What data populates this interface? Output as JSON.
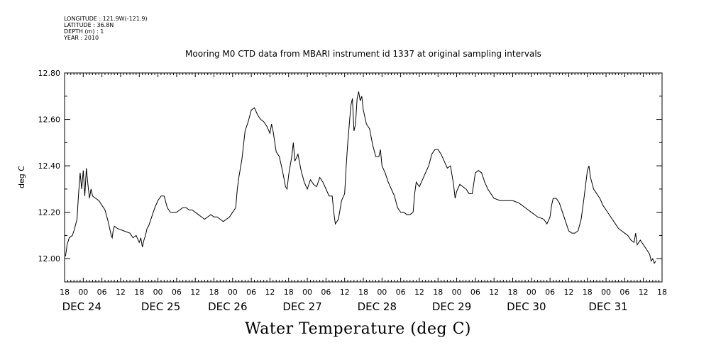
{
  "header": {
    "longitude": "LONGITUDE : 121.9W(-121.9)",
    "latitude": "LATITUDE : 36.8N",
    "depth": "DEPTH (m) : 1",
    "year": "YEAR : 2010"
  },
  "chart_data": {
    "type": "line",
    "title": "Mooring M0 CTD data from MBARI instrument id 1337 at original sampling intervals",
    "xlabel": "Water Temperature (deg C)",
    "ylabel": "deg C",
    "ylim": [
      11.9,
      12.8
    ],
    "xlim_hours_from_dec24_00": [
      -6,
      186
    ],
    "y_ticks": [
      "12.00",
      "12.20",
      "12.40",
      "12.60",
      "12.80"
    ],
    "x_hour_ticks": [
      "18",
      "00",
      "06",
      "12",
      "18",
      "00",
      "06",
      "12",
      "18",
      "00",
      "06",
      "12",
      "18",
      "00",
      "06",
      "12",
      "18",
      "00",
      "06",
      "12",
      "18",
      "00",
      "06",
      "12",
      "18",
      "00",
      "06",
      "12",
      "18",
      "00",
      "06",
      "12",
      "18"
    ],
    "day_labels": [
      "DEC 24",
      "DEC 25",
      "DEC 26",
      "DEC 27",
      "DEC 28",
      "DEC 29",
      "DEC 30",
      "DEC 31"
    ],
    "grid": false,
    "series": [
      {
        "line_color": "#000000",
        "points": [
          [
            -5.7,
            12.01
          ],
          [
            -5.2,
            12.06
          ],
          [
            -4.5,
            12.09
          ],
          [
            -3.5,
            12.1
          ],
          [
            -3,
            12.12
          ],
          [
            -2,
            12.17
          ],
          [
            -1.5,
            12.28
          ],
          [
            -1,
            12.37
          ],
          [
            -0.5,
            12.3
          ],
          [
            0,
            12.38
          ],
          [
            0.5,
            12.27
          ],
          [
            1,
            12.39
          ],
          [
            1.5,
            12.32
          ],
          [
            2,
            12.26
          ],
          [
            2.5,
            12.3
          ],
          [
            3,
            12.27
          ],
          [
            4,
            12.26
          ],
          [
            5,
            12.25
          ],
          [
            6,
            12.23
          ],
          [
            7,
            12.21
          ],
          [
            8,
            12.16
          ],
          [
            9,
            12.1
          ],
          [
            9.3,
            12.09
          ],
          [
            9.6,
            12.12
          ],
          [
            10,
            12.14
          ],
          [
            11,
            12.13
          ],
          [
            13,
            12.12
          ],
          [
            15,
            12.11
          ],
          [
            16,
            12.09
          ],
          [
            17,
            12.1
          ],
          [
            18,
            12.07
          ],
          [
            18.5,
            12.09
          ],
          [
            19,
            12.05
          ],
          [
            19.5,
            12.08
          ],
          [
            20,
            12.1
          ],
          [
            20.5,
            12.13
          ],
          [
            21,
            12.14
          ],
          [
            22,
            12.18
          ],
          [
            23,
            12.22
          ],
          [
            24,
            12.25
          ],
          [
            25,
            12.27
          ],
          [
            26,
            12.27
          ],
          [
            27,
            12.22
          ],
          [
            28,
            12.2
          ],
          [
            29,
            12.2
          ],
          [
            30,
            12.2
          ],
          [
            31,
            12.21
          ],
          [
            32,
            12.22
          ],
          [
            33,
            12.22
          ],
          [
            34,
            12.21
          ],
          [
            35,
            12.21
          ],
          [
            36,
            12.2
          ],
          [
            37,
            12.19
          ],
          [
            38,
            12.18
          ],
          [
            39,
            12.17
          ],
          [
            40,
            12.18
          ],
          [
            41,
            12.19
          ],
          [
            42,
            12.18
          ],
          [
            43,
            12.18
          ],
          [
            44,
            12.17
          ],
          [
            45,
            12.16
          ],
          [
            46,
            12.17
          ],
          [
            47,
            12.18
          ],
          [
            48,
            12.2
          ],
          [
            49,
            12.22
          ],
          [
            49.5,
            12.3
          ],
          [
            50,
            12.35
          ],
          [
            51,
            12.43
          ],
          [
            52,
            12.55
          ],
          [
            53,
            12.59
          ],
          [
            54,
            12.64
          ],
          [
            55,
            12.65
          ],
          [
            56,
            12.62
          ],
          [
            57,
            12.6
          ],
          [
            58,
            12.59
          ],
          [
            59,
            12.57
          ],
          [
            60,
            12.54
          ],
          [
            60.5,
            12.58
          ],
          [
            61,
            12.55
          ],
          [
            62,
            12.46
          ],
          [
            63,
            12.44
          ],
          [
            64,
            12.38
          ],
          [
            65,
            12.31
          ],
          [
            65.5,
            12.3
          ],
          [
            66,
            12.36
          ],
          [
            67,
            12.44
          ],
          [
            67.5,
            12.5
          ],
          [
            68,
            12.42
          ],
          [
            69,
            12.45
          ],
          [
            70,
            12.38
          ],
          [
            71,
            12.33
          ],
          [
            72,
            12.3
          ],
          [
            73,
            12.34
          ],
          [
            74,
            12.32
          ],
          [
            75,
            12.31
          ],
          [
            76,
            12.35
          ],
          [
            77,
            12.33
          ],
          [
            78,
            12.3
          ],
          [
            79,
            12.27
          ],
          [
            80,
            12.27
          ],
          [
            80.5,
            12.2
          ],
          [
            81,
            12.15
          ],
          [
            82,
            12.17
          ],
          [
            83,
            12.25
          ],
          [
            84,
            12.28
          ],
          [
            84.5,
            12.4
          ],
          [
            85,
            12.5
          ],
          [
            86,
            12.66
          ],
          [
            86.5,
            12.69
          ],
          [
            87,
            12.55
          ],
          [
            87.5,
            12.58
          ],
          [
            88,
            12.69
          ],
          [
            88.5,
            12.72
          ],
          [
            89,
            12.68
          ],
          [
            89.5,
            12.7
          ],
          [
            90,
            12.64
          ],
          [
            91,
            12.58
          ],
          [
            92,
            12.56
          ],
          [
            93,
            12.49
          ],
          [
            94,
            12.44
          ],
          [
            95,
            12.44
          ],
          [
            95.5,
            12.47
          ],
          [
            96,
            12.4
          ],
          [
            97,
            12.37
          ],
          [
            98,
            12.33
          ],
          [
            99,
            12.3
          ],
          [
            100,
            12.27
          ],
          [
            101,
            12.22
          ],
          [
            102,
            12.2
          ],
          [
            103,
            12.2
          ],
          [
            104,
            12.19
          ],
          [
            105,
            12.19
          ],
          [
            106,
            12.2
          ],
          [
            106.5,
            12.28
          ],
          [
            107,
            12.33
          ],
          [
            108,
            12.31
          ],
          [
            109,
            12.34
          ],
          [
            110,
            12.37
          ],
          [
            111,
            12.4
          ],
          [
            112,
            12.45
          ],
          [
            113,
            12.47
          ],
          [
            114,
            12.47
          ],
          [
            115,
            12.45
          ],
          [
            116,
            12.42
          ],
          [
            117,
            12.39
          ],
          [
            118,
            12.4
          ],
          [
            119,
            12.32
          ],
          [
            119.5,
            12.26
          ],
          [
            120,
            12.29
          ],
          [
            121,
            12.32
          ],
          [
            122,
            12.31
          ],
          [
            123,
            12.3
          ],
          [
            124,
            12.28
          ],
          [
            125,
            12.28
          ],
          [
            126,
            12.37
          ],
          [
            127,
            12.38
          ],
          [
            128,
            12.37
          ],
          [
            129,
            12.33
          ],
          [
            130,
            12.3
          ],
          [
            131,
            12.28
          ],
          [
            132,
            12.26
          ],
          [
            134,
            12.25
          ],
          [
            136,
            12.25
          ],
          [
            138,
            12.25
          ],
          [
            140,
            12.24
          ],
          [
            142,
            12.22
          ],
          [
            144,
            12.2
          ],
          [
            146,
            12.18
          ],
          [
            148,
            12.17
          ],
          [
            149,
            12.15
          ],
          [
            150,
            12.18
          ],
          [
            150.5,
            12.23
          ],
          [
            151,
            12.26
          ],
          [
            152,
            12.26
          ],
          [
            153,
            12.24
          ],
          [
            154,
            12.2
          ],
          [
            155,
            12.16
          ],
          [
            156,
            12.12
          ],
          [
            157,
            12.11
          ],
          [
            158,
            12.11
          ],
          [
            159,
            12.12
          ],
          [
            160,
            12.17
          ],
          [
            161,
            12.27
          ],
          [
            162,
            12.38
          ],
          [
            162.5,
            12.4
          ],
          [
            163,
            12.35
          ],
          [
            164,
            12.3
          ],
          [
            165,
            12.28
          ],
          [
            166,
            12.26
          ],
          [
            167,
            12.23
          ],
          [
            168,
            12.21
          ],
          [
            169,
            12.19
          ],
          [
            170,
            12.17
          ],
          [
            171,
            12.15
          ],
          [
            172,
            12.13
          ],
          [
            173,
            12.12
          ],
          [
            174,
            12.11
          ],
          [
            175,
            12.1
          ],
          [
            176,
            12.08
          ],
          [
            177,
            12.07
          ],
          [
            177.5,
            12.11
          ],
          [
            178,
            12.06
          ],
          [
            179,
            12.08
          ],
          [
            180,
            12.06
          ],
          [
            181,
            12.04
          ],
          [
            182,
            12.02
          ],
          [
            182.5,
            11.99
          ],
          [
            183,
            12.0
          ],
          [
            183.5,
            11.98
          ],
          [
            184,
            11.99
          ]
        ]
      }
    ]
  }
}
